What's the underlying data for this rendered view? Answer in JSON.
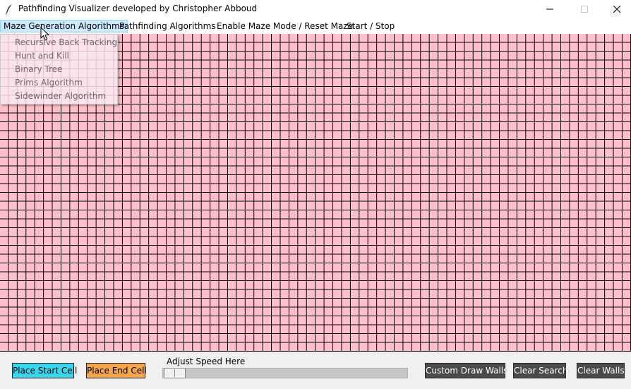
{
  "window": {
    "title": "Pathfinding Visualizer developed by Christopher Abboud",
    "app_icon": "feather-icon",
    "controls": [
      "minimize-icon",
      "maximize-icon",
      "close-icon"
    ]
  },
  "menubar": {
    "items": [
      {
        "label": "Maze Generation Algorithms",
        "active": true
      },
      {
        "label": "Pathfinding Algorithms"
      },
      {
        "label": "Enable Maze Mode / Reset Maze"
      },
      {
        "label": "Start / Stop"
      }
    ]
  },
  "dropdown": {
    "items": [
      {
        "label": "Recursive Back Tracking"
      },
      {
        "label": "Hunt and Kill"
      },
      {
        "label": "Binary Tree"
      },
      {
        "label": "Prims Algorithm"
      },
      {
        "label": "Sidewinder Algorithm"
      }
    ]
  },
  "grid": {
    "cell_color": "#ffc0cb",
    "line_color": "#000000"
  },
  "controls": {
    "place_start": "Place Start Cell",
    "place_end": "Place End Cell",
    "speed_label": "Adjust Speed Here",
    "speed_value": 0.05,
    "custom_draw": "Custom Draw Walls",
    "clear_search": "Clear Search",
    "clear_walls": "Clear Walls"
  },
  "colors": {
    "start_button": "#3ad6f0",
    "end_button": "#f5a64f",
    "dark_button": "#4a4a4a"
  }
}
